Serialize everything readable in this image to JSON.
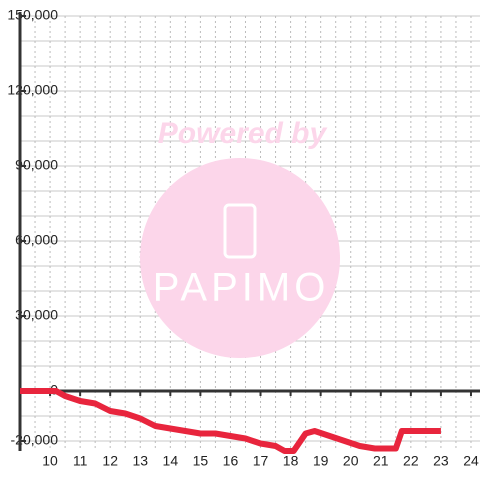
{
  "chart_data": {
    "type": "line",
    "watermark": {
      "top": "Powered by",
      "logo": "PAPIMO"
    },
    "x": [
      9,
      10.2,
      10.5,
      11,
      11.5,
      12,
      12.5,
      13,
      13.5,
      14,
      14.5,
      15,
      15.5,
      16,
      16.5,
      17,
      17.5,
      17.8,
      18.1,
      18.5,
      18.8,
      19.3,
      19.8,
      20.3,
      20.8,
      21.5,
      21.7,
      23
    ],
    "series": [
      {
        "color": "#e8253d",
        "values": [
          0,
          0,
          -2000,
          -4000,
          -5000,
          -8000,
          -9000,
          -11000,
          -14000,
          -15000,
          -16000,
          -17000,
          -17000,
          -18000,
          -19000,
          -21000,
          -22000,
          -24000,
          -24000,
          -17000,
          -16000,
          -18000,
          -20000,
          -22000,
          -23000,
          -23000,
          -16000,
          -16000
        ]
      }
    ],
    "xlim": [
      9,
      24.3
    ],
    "ylim": [
      -24000,
      150000
    ],
    "xticks": [
      10,
      11,
      12,
      13,
      14,
      15,
      16,
      17,
      18,
      19,
      20,
      21,
      22,
      23,
      24
    ],
    "yticks": [
      {
        "value": -20000,
        "label": "-20,000"
      },
      0,
      {
        "value": 30000,
        "label": "30,000"
      },
      {
        "value": 60000,
        "label": "60,000"
      },
      {
        "value": 90000,
        "label": "90,000"
      },
      {
        "value": 120000,
        "label": "120,000"
      },
      {
        "value": 150000,
        "label": "150,000"
      }
    ],
    "ygrid": [
      -20000,
      -10000,
      10000,
      20000,
      30000,
      40000,
      50000,
      60000,
      70000,
      80000,
      90000,
      100000,
      110000,
      120000,
      130000,
      140000,
      150000
    ],
    "xgrid": [
      9.5,
      10,
      10.5,
      11,
      11.5,
      12,
      12.5,
      13,
      13.5,
      14,
      14.5,
      15,
      15.5,
      16,
      16.5,
      17,
      17.5,
      18,
      18.5,
      19,
      19.5,
      20,
      20.5,
      21,
      21.5,
      22,
      22.5,
      23,
      23.5,
      24
    ],
    "grid": true
  }
}
